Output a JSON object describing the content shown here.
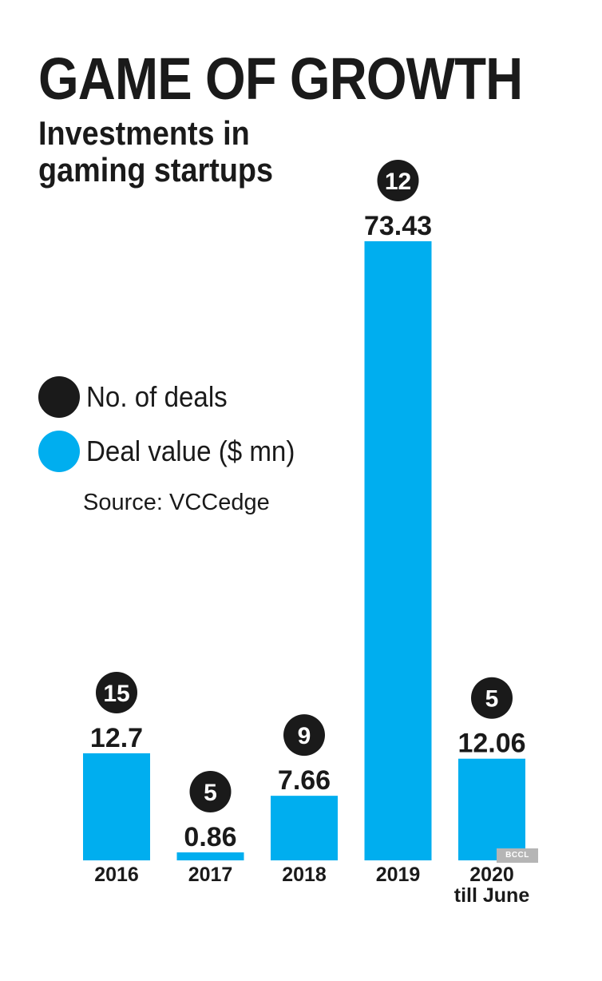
{
  "chart_data": {
    "type": "bar",
    "title": "GAME OF GROWTH",
    "subtitle_lines": [
      "Investments in",
      "gaming startups"
    ],
    "categories": [
      [
        "2016"
      ],
      [
        "2017"
      ],
      [
        "2018"
      ],
      [
        "2019"
      ],
      [
        "2020",
        "till June"
      ]
    ],
    "series": [
      {
        "name": "Deal value ($ mn)",
        "values": [
          12.7,
          0.86,
          7.66,
          73.43,
          12.06
        ],
        "value_labels": [
          "12.7",
          "0.86",
          "7.66",
          "73.43",
          "12.06"
        ],
        "color": "#00aeef"
      },
      {
        "name": "No. of deals",
        "values": [
          15,
          5,
          9,
          12,
          5
        ],
        "color": "#1a1a1a"
      }
    ],
    "ylim": [
      0,
      73.43
    ],
    "grid": false,
    "legend_position": "left"
  },
  "source": "Source: VCCedge",
  "watermark": "BCCL"
}
